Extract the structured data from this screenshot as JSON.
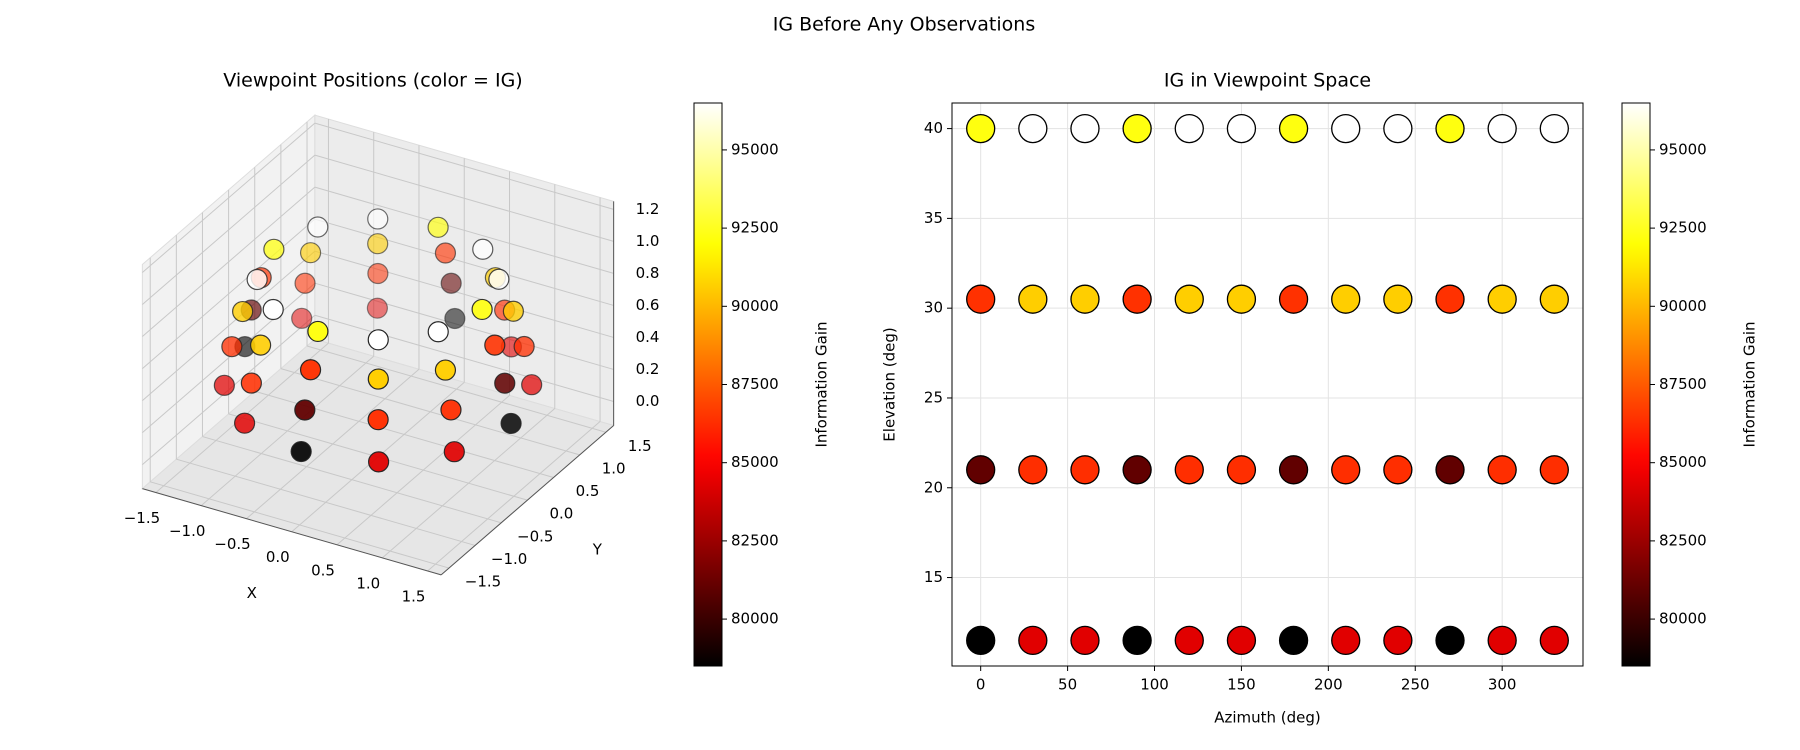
{
  "title": "IG Before Any Observations",
  "chart_data": [
    {
      "type": "scatter3d",
      "title": "Viewpoint Positions (color = IG)",
      "xlabel": "X",
      "ylabel": "Y",
      "x": [
        1.47,
        1.27,
        0.74,
        0,
        -0.74,
        -1.27,
        -1.47,
        -1.27,
        -0.74,
        0,
        0.74,
        1.27,
        1.4,
        1.21,
        0.7,
        0,
        -0.7,
        -1.21,
        -1.4,
        -1.21,
        -0.7,
        0,
        0.7,
        1.21,
        1.29,
        1.12,
        0.65,
        0,
        -0.65,
        -1.12,
        -1.29,
        -1.12,
        -0.65,
        0,
        0.65,
        1.12,
        1.15,
        1.0,
        0.58,
        0,
        -0.58,
        -1.0,
        -1.15,
        -1.0,
        -0.58,
        0,
        0.58,
        1.0
      ],
      "y": [
        0,
        0.74,
        1.27,
        1.47,
        1.27,
        0.74,
        0,
        -0.74,
        -1.27,
        -1.47,
        -1.27,
        -0.74,
        0,
        0.7,
        1.21,
        1.4,
        1.21,
        0.7,
        0,
        -0.7,
        -1.21,
        -1.4,
        -1.21,
        -0.7,
        0,
        0.65,
        1.12,
        1.29,
        1.12,
        0.65,
        0,
        -0.65,
        -1.12,
        -1.29,
        -1.12,
        -0.65,
        0,
        0.58,
        1.0,
        1.15,
        1.0,
        0.58,
        0,
        -0.58,
        -1.0,
        -1.15,
        -1.0,
        -0.58
      ],
      "z": [
        0.3,
        0.3,
        0.3,
        0.3,
        0.3,
        0.3,
        0.3,
        0.3,
        0.3,
        0.3,
        0.3,
        0.3,
        0.54,
        0.54,
        0.54,
        0.54,
        0.54,
        0.54,
        0.54,
        0.54,
        0.54,
        0.54,
        0.54,
        0.54,
        0.76,
        0.76,
        0.76,
        0.76,
        0.76,
        0.76,
        0.76,
        0.76,
        0.76,
        0.76,
        0.76,
        0.76,
        0.96,
        0.96,
        0.96,
        0.96,
        0.96,
        0.96,
        0.96,
        0.96,
        0.96,
        0.96,
        0.96,
        0.96
      ],
      "values": [
        78500,
        84300,
        84300,
        78500,
        84300,
        84300,
        78500,
        84300,
        84300,
        78500,
        84300,
        84300,
        81000,
        86300,
        86300,
        81000,
        86300,
        86300,
        81000,
        86300,
        86300,
        81000,
        86300,
        86300,
        86400,
        90600,
        90600,
        86400,
        90600,
        90600,
        86400,
        90600,
        90600,
        86400,
        90600,
        90600,
        92200,
        96500,
        96500,
        92200,
        96500,
        96500,
        92200,
        96500,
        96500,
        92200,
        96500,
        96500
      ],
      "xlim": [
        -1.65,
        1.65
      ],
      "ylim": [
        -1.65,
        1.65
      ],
      "zlim": [
        -0.15,
        1.25
      ],
      "xticks": [
        {
          "value": -1.5,
          "label": "−1.5"
        },
        {
          "value": -1,
          "label": "−1.0"
        },
        {
          "value": -0.5,
          "label": "−0.5"
        },
        {
          "value": 0,
          "label": "0.0"
        },
        0.5,
        {
          "value": 1,
          "label": "1.0"
        },
        1.5
      ],
      "yticks": [
        {
          "value": -1.5,
          "label": "−1.5"
        },
        {
          "value": -1,
          "label": "−1.0"
        },
        {
          "value": -0.5,
          "label": "−0.5"
        },
        {
          "value": 0,
          "label": "0.0"
        },
        0.5,
        {
          "value": 1,
          "label": "1.0"
        },
        1.5
      ],
      "zticks": [
        {
          "value": 0,
          "label": "0.0"
        },
        0.2,
        0.4,
        0.6,
        0.8,
        {
          "value": 1,
          "label": "1.0"
        },
        1.2
      ],
      "colormap": "hot",
      "colorbar": {
        "label": "Information Gain",
        "lim": [
          78500,
          96500
        ],
        "ticks": [
          80000,
          82500,
          85000,
          87500,
          90000,
          92500,
          95000
        ]
      }
    },
    {
      "type": "scatter",
      "title": "IG in Viewpoint Space",
      "xlabel": "Azimuth (deg)",
      "ylabel": "Elevation (deg)",
      "x": [
        0,
        30,
        60,
        90,
        120,
        150,
        180,
        210,
        240,
        270,
        300,
        330,
        0,
        30,
        60,
        90,
        120,
        150,
        180,
        210,
        240,
        270,
        300,
        330,
        0,
        30,
        60,
        90,
        120,
        150,
        180,
        210,
        240,
        270,
        300,
        330,
        0,
        30,
        60,
        90,
        120,
        150,
        180,
        210,
        240,
        270,
        300,
        330
      ],
      "y": [
        11.5,
        11.5,
        11.5,
        11.5,
        11.5,
        11.5,
        11.5,
        11.5,
        11.5,
        11.5,
        11.5,
        11.5,
        21,
        21,
        21,
        21,
        21,
        21,
        21,
        21,
        21,
        21,
        21,
        21,
        30.5,
        30.5,
        30.5,
        30.5,
        30.5,
        30.5,
        30.5,
        30.5,
        30.5,
        30.5,
        30.5,
        30.5,
        40,
        40,
        40,
        40,
        40,
        40,
        40,
        40,
        40,
        40,
        40,
        40
      ],
      "values": [
        78500,
        84300,
        84300,
        78500,
        84300,
        84300,
        78500,
        84300,
        84300,
        78500,
        84300,
        84300,
        81000,
        86300,
        86300,
        81000,
        86300,
        86300,
        81000,
        86300,
        86300,
        81000,
        86300,
        86300,
        86400,
        90600,
        90600,
        86400,
        90600,
        90600,
        86400,
        90600,
        90600,
        86400,
        90600,
        90600,
        92200,
        96500,
        96500,
        92200,
        96500,
        96500,
        92200,
        96500,
        96500,
        92200,
        96500,
        96500
      ],
      "xlim": [
        -16.5,
        346.5
      ],
      "ylim": [
        10.075,
        41.425
      ],
      "xticks": [
        0,
        50,
        100,
        150,
        200,
        250,
        300
      ],
      "yticks": [
        15,
        20,
        25,
        30,
        35,
        40
      ],
      "grid": true,
      "colormap": "hot",
      "colorbar": {
        "label": "Information Gain",
        "lim": [
          78500,
          96500
        ],
        "ticks": [
          80000,
          82500,
          85000,
          87500,
          90000,
          92500,
          95000
        ]
      }
    }
  ]
}
